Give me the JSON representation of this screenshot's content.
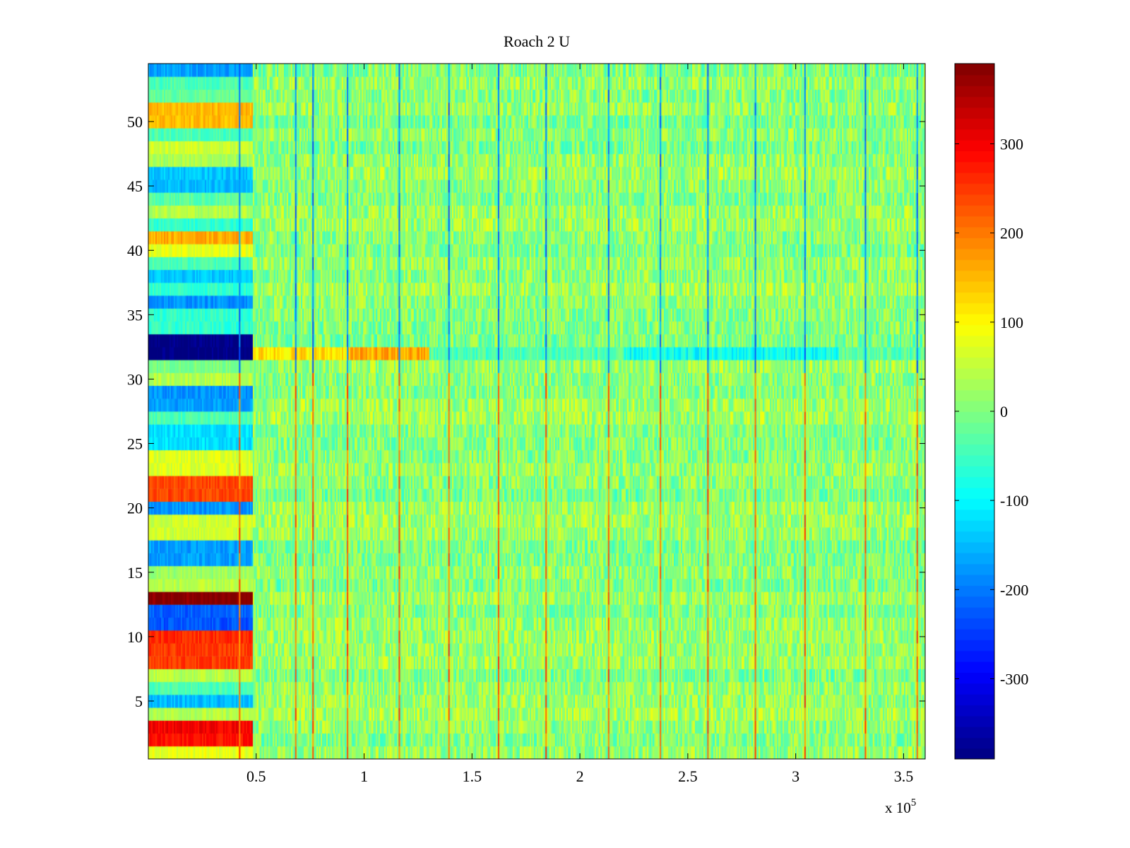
{
  "chart_data": {
    "type": "heatmap",
    "title": "Roach 2 U",
    "xlabel": "",
    "ylabel": "",
    "x_exponent_label": "x 10",
    "x_exponent_sup": "5",
    "xlim": [
      0,
      3.6
    ],
    "ylim": [
      0.5,
      54.5
    ],
    "x_ticks": [
      0.5,
      1,
      1.5,
      2,
      2.5,
      3,
      3.5
    ],
    "x_tick_labels": [
      "0.5",
      "1",
      "1.5",
      "2",
      "2.5",
      "3",
      "3.5"
    ],
    "y_ticks": [
      5,
      10,
      15,
      20,
      25,
      30,
      35,
      40,
      45,
      50
    ],
    "y_tick_labels": [
      "5",
      "10",
      "15",
      "20",
      "25",
      "30",
      "35",
      "40",
      "45",
      "50"
    ],
    "colormap": "jet",
    "colorbar": {
      "clim": [
        -390,
        390
      ],
      "ticks": [
        -300,
        -200,
        -100,
        0,
        100,
        200,
        300
      ],
      "tick_labels": [
        "-300",
        "-200",
        "-100",
        "0",
        "100",
        "200",
        "300"
      ]
    },
    "rows": 54,
    "initial_segment_end_x": 0.48,
    "initial_segment_row_values": [
      80,
      280,
      300,
      40,
      -150,
      -40,
      40,
      250,
      250,
      260,
      -230,
      -220,
      390,
      40,
      20,
      -170,
      -170,
      60,
      60,
      -180,
      240,
      240,
      70,
      70,
      -120,
      -120,
      -40,
      -170,
      -180,
      40,
      0,
      -390,
      -390,
      -60,
      -60,
      -180,
      -60,
      -140,
      -40,
      80,
      160,
      -60,
      40,
      -30,
      -150,
      -140,
      30,
      60,
      -40,
      150,
      150,
      -20,
      -40,
      -170
    ],
    "spike_columns_x": [
      0.42,
      0.68,
      0.76,
      0.92,
      1.16,
      1.39,
      1.62,
      1.84,
      2.13,
      2.37,
      2.59,
      2.81,
      3.04,
      3.32,
      3.56
    ],
    "spike_value_lower_rows": 260,
    "spike_value_upper_rows": -240,
    "row32_stripe_segments": [
      {
        "x0": 0.48,
        "x1": 0.92,
        "value": 120
      },
      {
        "x0": 0.92,
        "x1": 1.3,
        "value": 160
      },
      {
        "x0": 1.3,
        "x1": 2.2,
        "value": -40
      },
      {
        "x0": 2.2,
        "x1": 3.2,
        "value": -90
      },
      {
        "x0": 3.2,
        "x1": 3.6,
        "value": -30
      }
    ],
    "body_mean_value": 10,
    "body_noise_amplitude": 60
  }
}
